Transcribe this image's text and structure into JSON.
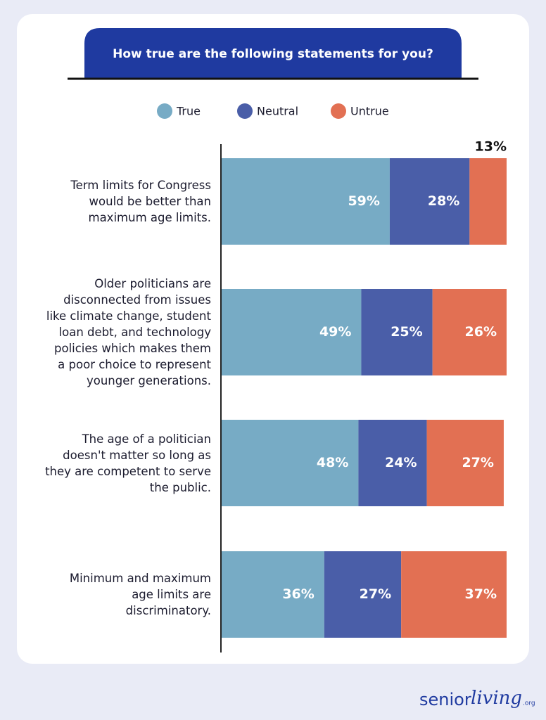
{
  "chart_data": {
    "type": "stacked_bar",
    "title": "How true are the following statements for you?",
    "categories": [
      "Term limits for Congress would be better than maximum age limits.",
      "Older politicians are disconnected from issues like climate change, student loan debt, and technology policies which makes them a poor choice to represent younger generations.",
      "The age of a politician doesn't matter so long as they are competent to serve the public.",
      "Minimum and maximum age limits are discriminatory."
    ],
    "series": [
      {
        "name": "True",
        "color": "#77abc5",
        "values": [
          59,
          49,
          48,
          36
        ],
        "value_labels": [
          "59%",
          "49%",
          "48%",
          "36%"
        ]
      },
      {
        "name": "Neutral",
        "color": "#4a5ea8",
        "values": [
          28,
          25,
          24,
          27
        ],
        "value_labels": [
          "28%",
          "25%",
          "24%",
          "27%"
        ]
      },
      {
        "name": "Untrue",
        "color": "#e27053",
        "values": [
          13,
          26,
          27,
          37
        ],
        "value_labels": [
          "13%",
          "26%",
          "27%",
          "37%"
        ]
      }
    ],
    "xlim": [
      0,
      100
    ]
  },
  "brand": {
    "parts": [
      "senior",
      "living",
      ".org"
    ]
  }
}
